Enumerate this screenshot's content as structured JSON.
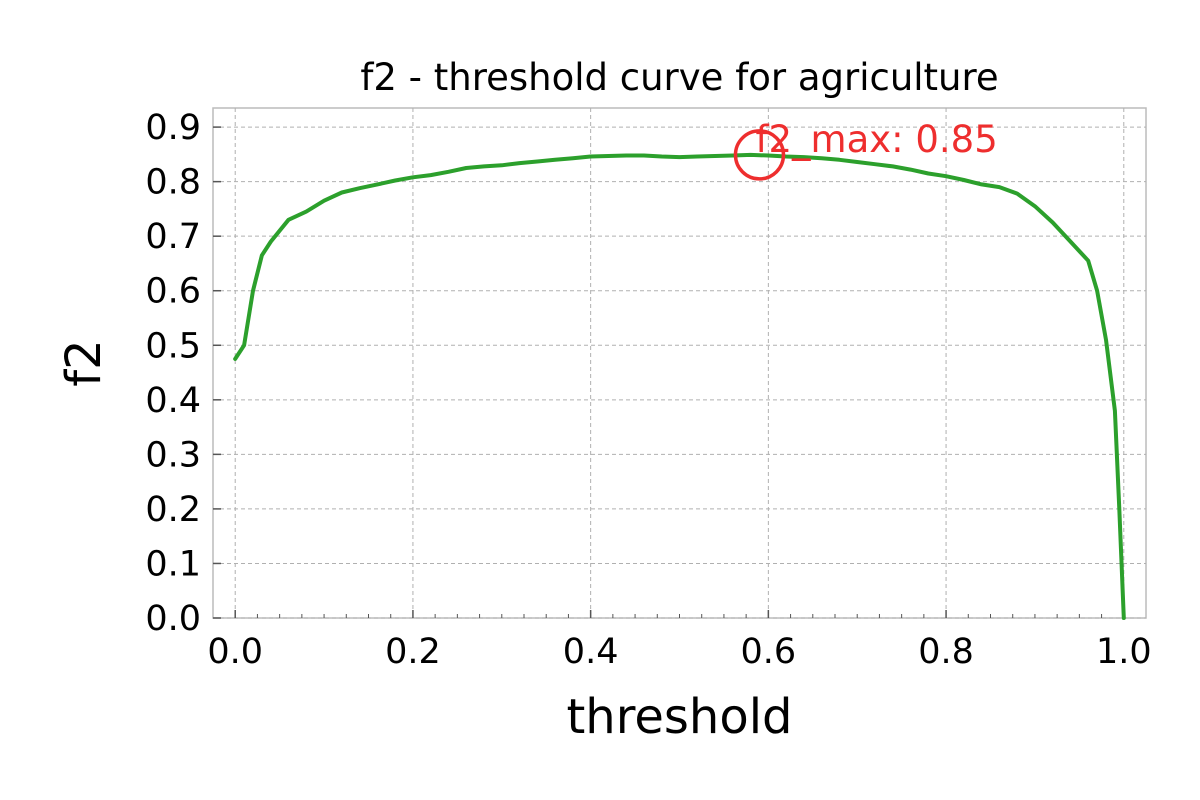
{
  "chart_data": {
    "type": "line",
    "title": "f2 - threshold curve for agriculture",
    "xlabel": "threshold",
    "ylabel": "f2",
    "xlim": [
      -0.025,
      1.025
    ],
    "ylim": [
      0.0,
      0.935
    ],
    "xticks": [
      0.0,
      0.2,
      0.4,
      0.6,
      0.8,
      1.0
    ],
    "xtick_labels": [
      "0.0",
      "0.2",
      "0.4",
      "0.6",
      "0.8",
      "1.0"
    ],
    "yticks": [
      0.0,
      0.1,
      0.2,
      0.3,
      0.4,
      0.5,
      0.6,
      0.7,
      0.8,
      0.9
    ],
    "ytick_labels": [
      "0.0",
      "0.1",
      "0.2",
      "0.3",
      "0.4",
      "0.5",
      "0.6",
      "0.7",
      "0.8",
      "0.9"
    ],
    "grid": true,
    "line_color": "#2ca02c",
    "annotation_color": "#ee2e2e",
    "series": [
      {
        "x": [
          0.0,
          0.01,
          0.02,
          0.03,
          0.04,
          0.05,
          0.06,
          0.08,
          0.1,
          0.12,
          0.14,
          0.16,
          0.18,
          0.2,
          0.22,
          0.24,
          0.26,
          0.28,
          0.3,
          0.32,
          0.34,
          0.36,
          0.38,
          0.4,
          0.42,
          0.44,
          0.46,
          0.48,
          0.5,
          0.52,
          0.54,
          0.56,
          0.58,
          0.6,
          0.62,
          0.64,
          0.66,
          0.68,
          0.7,
          0.72,
          0.74,
          0.76,
          0.78,
          0.8,
          0.82,
          0.84,
          0.86,
          0.88,
          0.9,
          0.92,
          0.94,
          0.96,
          0.97,
          0.98,
          0.99,
          0.995,
          1.0
        ],
        "y": [
          0.475,
          0.5,
          0.6,
          0.665,
          0.69,
          0.71,
          0.73,
          0.745,
          0.765,
          0.78,
          0.788,
          0.795,
          0.802,
          0.808,
          0.812,
          0.818,
          0.825,
          0.828,
          0.83,
          0.834,
          0.837,
          0.84,
          0.843,
          0.846,
          0.847,
          0.848,
          0.848,
          0.846,
          0.845,
          0.846,
          0.847,
          0.848,
          0.849,
          0.848,
          0.846,
          0.845,
          0.843,
          0.84,
          0.836,
          0.832,
          0.828,
          0.822,
          0.815,
          0.81,
          0.803,
          0.795,
          0.79,
          0.778,
          0.755,
          0.725,
          0.69,
          0.655,
          0.6,
          0.51,
          0.38,
          0.2,
          0.0
        ]
      }
    ],
    "annotation": {
      "label": "f2_max: 0.85",
      "x": 0.59,
      "y": 0.849
    }
  }
}
